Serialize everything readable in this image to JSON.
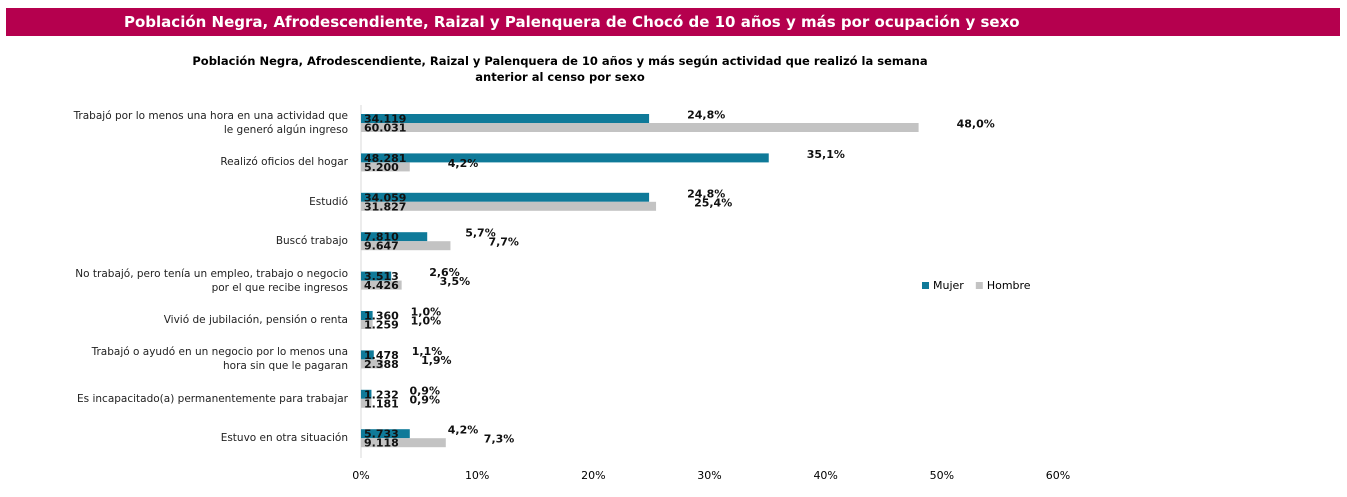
{
  "banner": {
    "title": "Población Negra, Afrodescendiente, Raizal y Palenquera de Chocó de 10 años y más por ocupación y sexo"
  },
  "chart_data": {
    "type": "barh",
    "title": "Población Negra, Afrodescendiente, Raizal y Palenquera de 10 años y más según actividad que realizó la semana\nanterior al censo por sexo",
    "categories": [
      "Trabajó por lo menos una hora en una actividad que\nle generó algún ingreso",
      "Realizó oficios del hogar",
      "Estudió",
      "Buscó trabajo",
      "No trabajó, pero tenía un empleo, trabajo o negocio\npor el que recibe ingresos",
      "Vivió de jubilación, pensión o renta",
      "Trabajó o ayudó en un negocio por lo menos una\nhora sin que le pagaran",
      "Es incapacitado(a) permanentemente para trabajar",
      "Estuvo en otra situación"
    ],
    "series": [
      {
        "name": "Mujer",
        "color": "#0f7a99",
        "values": [
          24.8,
          35.1,
          24.8,
          5.7,
          2.6,
          1.0,
          1.1,
          0.9,
          4.2
        ],
        "value_labels": [
          "24,8%",
          "35,1%",
          "24,8%",
          "5,7%",
          "2,6%",
          "1,0%",
          "1,1%",
          "0,9%",
          "4,2%"
        ],
        "count_labels": [
          "34.119",
          "48.281",
          "34.059",
          "7.810",
          "3.513",
          "1.360",
          "1.478",
          "1.232",
          "5.733"
        ]
      },
      {
        "name": "Hombre",
        "color": "#c3c3c3",
        "values": [
          48.0,
          4.2,
          25.4,
          7.7,
          3.5,
          1.0,
          1.9,
          0.9,
          7.3
        ],
        "value_labels": [
          "48,0%",
          "4,2%",
          "25,4%",
          "7,7%",
          "3,5%",
          "1,0%",
          "1,9%",
          "0,9%",
          "7,3%"
        ],
        "count_labels": [
          "60.031",
          "5.200",
          "31.827",
          "9.647",
          "4.426",
          "1.259",
          "2.388",
          "1.181",
          "9.118"
        ]
      }
    ],
    "xlim": [
      0,
      60
    ],
    "xticks": [
      {
        "value": 0,
        "label": "0%"
      },
      {
        "value": 10,
        "label": "10%"
      },
      {
        "value": 20,
        "label": "20%"
      },
      {
        "value": 30,
        "label": "30%"
      },
      {
        "value": 40,
        "label": "40%"
      },
      {
        "value": 50,
        "label": "50%"
      },
      {
        "value": 60,
        "label": "60%"
      }
    ],
    "legend": "right"
  }
}
